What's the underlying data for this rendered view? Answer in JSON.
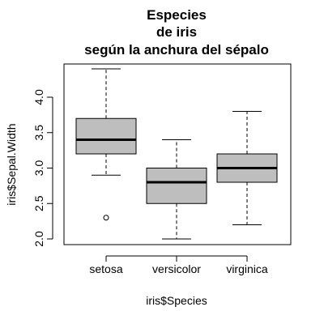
{
  "chart_data": {
    "type": "boxplot",
    "title_lines": [
      "Especies",
      "de iris",
      "según la anchura del sépalo"
    ],
    "xlabel": "iris$Species",
    "ylabel": "iris$Sepal.Width",
    "categories": [
      "setosa",
      "versicolor",
      "virginica"
    ],
    "yticks": [
      "2.0",
      "2.5",
      "3.0",
      "3.5",
      "4.0"
    ],
    "ylim": [
      1.9,
      4.5
    ],
    "box_color": "#bebebe",
    "grid": false,
    "series": [
      {
        "lower_whisker": 2.9,
        "q1": 3.2,
        "median": 3.4,
        "q3": 3.7,
        "upper_whisker": 4.4,
        "outliers": [
          2.3
        ]
      },
      {
        "lower_whisker": 2.0,
        "q1": 2.5,
        "median": 2.8,
        "q3": 3.0,
        "upper_whisker": 3.4,
        "outliers": []
      },
      {
        "lower_whisker": 2.2,
        "q1": 2.8,
        "median": 3.0,
        "q3": 3.2,
        "upper_whisker": 3.8,
        "outliers": []
      }
    ]
  }
}
